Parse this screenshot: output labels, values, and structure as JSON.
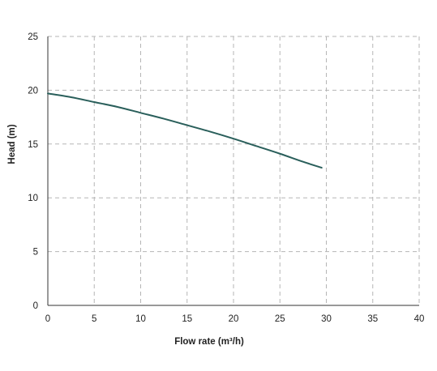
{
  "chart_data": {
    "type": "line",
    "title": "",
    "xlabel": "Flow rate (m³/h)",
    "ylabel": "Head (m)",
    "xlim": [
      0,
      40
    ],
    "ylim": [
      0,
      25
    ],
    "xticks": [
      "0",
      "5",
      "10",
      "15",
      "20",
      "25",
      "30",
      "35",
      "40"
    ],
    "yticks": [
      "0",
      "5",
      "10",
      "15",
      "20",
      "25"
    ],
    "grid": true,
    "legend": "none",
    "series": [
      {
        "color": "#2a5f5b",
        "x": [
          0,
          2.5,
          5,
          7.5,
          10,
          12.5,
          15,
          17.5,
          20,
          22.5,
          25,
          27.5,
          29.5
        ],
        "y": [
          19.7,
          19.35,
          18.9,
          18.45,
          17.9,
          17.35,
          16.75,
          16.15,
          15.5,
          14.8,
          14.1,
          13.35,
          12.8
        ]
      }
    ]
  }
}
